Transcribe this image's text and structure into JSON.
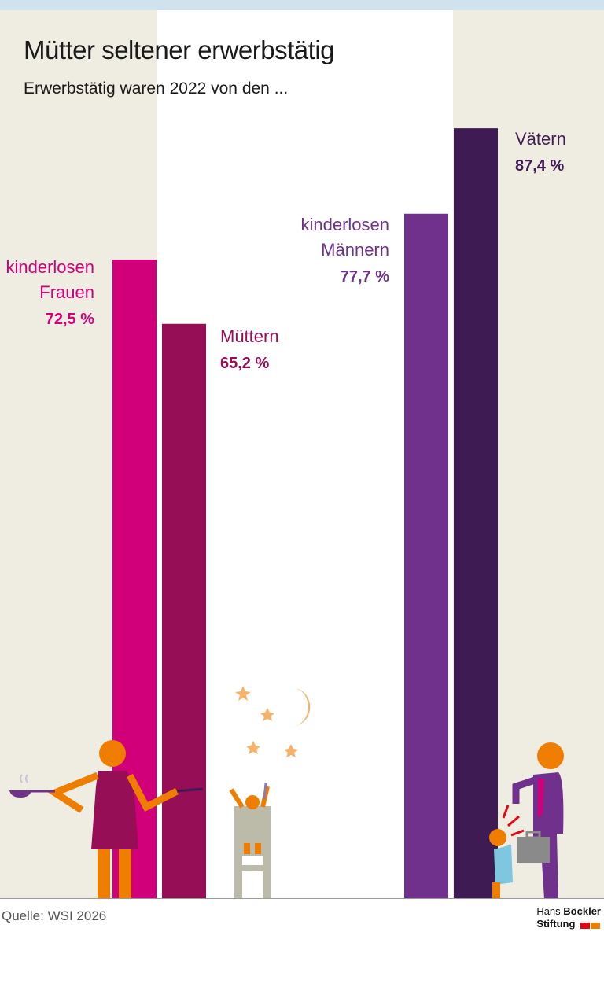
{
  "title": "Mütter seltener erwerbstätig",
  "subtitle": "Erwerbstätig waren 2022 von den ...",
  "source": "Quelle: WSI 2026",
  "logo": {
    "line1a": "Hans",
    "line1b": "Böckler",
    "line2": "Stiftung"
  },
  "chart_data": {
    "type": "bar",
    "categories": [
      "kinderlosen\nFrauen",
      "Müttern",
      "kinderlosen\nMännern",
      "Vätern"
    ],
    "values": [
      72.5,
      65.2,
      77.7,
      87.4
    ],
    "value_labels": [
      "72,5 %",
      "65,2 %",
      "77,7 %",
      "87,4 %"
    ],
    "colors": [
      "#d1007a",
      "#960e55",
      "#6f318c",
      "#3f1b54"
    ]
  }
}
